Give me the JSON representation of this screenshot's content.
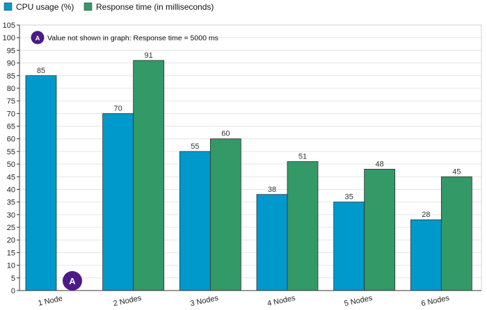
{
  "chart_data": {
    "type": "bar",
    "categories": [
      "1 Node",
      "2 Nodes",
      "3 Nodes",
      "4 Nodes",
      "5 Nodes",
      "6 Nodes"
    ],
    "series": [
      {
        "name": "CPU usage (%)",
        "color": "#0099cc",
        "values": [
          85,
          70,
          55,
          38,
          35,
          28
        ],
        "labels": [
          "85",
          "70",
          "55",
          "38",
          "35",
          "28"
        ]
      },
      {
        "name": "Response time (in milliseconds)",
        "color": "#339966",
        "values": [
          null,
          91,
          60,
          51,
          48,
          45
        ],
        "labels": [
          "",
          "91",
          "60",
          "51",
          "48",
          "45"
        ]
      }
    ],
    "ylim": [
      0,
      105
    ],
    "yticks": [
      0,
      5,
      10,
      15,
      20,
      25,
      30,
      35,
      40,
      45,
      50,
      55,
      60,
      65,
      70,
      75,
      80,
      85,
      90,
      95,
      100,
      105
    ],
    "ytick_labels": [
      "0",
      "5",
      "10",
      "15",
      "20",
      "25",
      "30",
      "35",
      "40",
      "45",
      "50",
      "55",
      "60",
      "65",
      "70",
      "75",
      "80",
      "85",
      "90",
      "95",
      "100",
      "105"
    ],
    "grid": true,
    "legend": "top-left",
    "annotation": {
      "badge": "A",
      "badge_color": "#4b1b86",
      "text": "Value not shown in graph: Response time = 5000 ms",
      "category": "1 Node",
      "series": "Response time (in milliseconds)"
    }
  }
}
